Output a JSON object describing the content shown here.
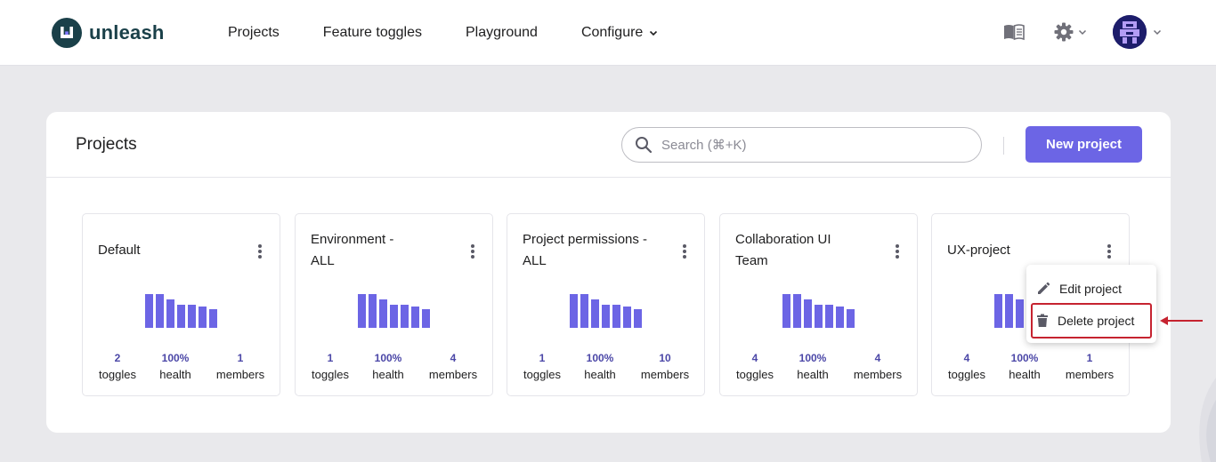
{
  "app": {
    "name": "unleash"
  },
  "nav": {
    "items": [
      "Projects",
      "Feature toggles",
      "Playground",
      "Configure"
    ]
  },
  "header_icons": [
    "docs-icon",
    "gear-icon",
    "avatar"
  ],
  "panel": {
    "title": "Projects",
    "search_placeholder": "Search (⌘+K)",
    "new_button": "New project"
  },
  "projects": [
    {
      "name": "Default",
      "toggles": "2",
      "health": "100%",
      "members": "1"
    },
    {
      "name": "Environment - ALL",
      "toggles": "1",
      "health": "100%",
      "members": "4"
    },
    {
      "name": "Project permissions - ALL",
      "toggles": "1",
      "health": "100%",
      "members": "10"
    },
    {
      "name": "Collaboration UI Team",
      "toggles": "4",
      "health": "100%",
      "members": "4"
    },
    {
      "name": "UX-project",
      "toggles": "4",
      "health": "100%",
      "members": "1"
    }
  ],
  "stat_labels": {
    "toggles": "toggles",
    "health": "health",
    "members": "members"
  },
  "context_menu": {
    "edit": "Edit project",
    "delete": "Delete project"
  },
  "colors": {
    "primary": "#6c65e5",
    "bars": "#6c65e5",
    "logo": "#1a4049",
    "annotation": "#c62330"
  }
}
